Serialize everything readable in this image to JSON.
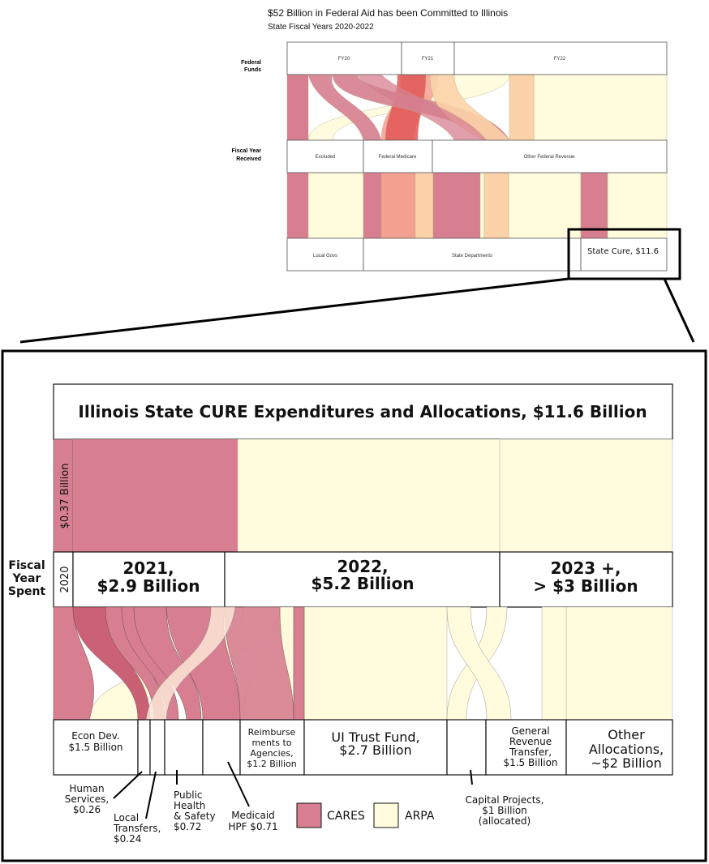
{
  "overview": {
    "title": "$52 Billion in Federal Aid has been Committed to Illinois",
    "subtitle": "State Fiscal Years 2020-2022",
    "row_labels": {
      "federal_funds": [
        "Federal",
        "Funds"
      ],
      "fiscal_year_received": [
        "Fiscal Year",
        "Received"
      ]
    },
    "top_nodes": [
      "FY20",
      "FY21",
      "FY22"
    ],
    "middle_nodes": [
      "Excluded",
      "Federal Medicare",
      "Other Federal Revenue"
    ],
    "bottom_nodes": [
      "Local Govs",
      "State Departments",
      "State Cure, $11.6"
    ]
  },
  "detail": {
    "title": "Illinois State CURE Expenditures and Allocations, $11.6 Billion",
    "row_label": [
      "Fiscal",
      "Year",
      "Spent"
    ],
    "rotated_labels": {
      "carryover": "$0.37 Billion",
      "fy2020": "2020"
    },
    "years": [
      {
        "line1": "2021,",
        "line2": "$2.9 Billion"
      },
      {
        "line1": "2022,",
        "line2": "$5.2 Billion"
      },
      {
        "line1": "2023 +,",
        "line2": "> $3 Billion"
      }
    ],
    "categories": {
      "econ_dev": [
        "Econ Dev.",
        "$1.5 Billion"
      ],
      "reimbursements": [
        "Reimburse",
        "ments to",
        "Agencies,",
        "$1.2 Billion"
      ],
      "ui_trust": [
        "UI Trust Fund,",
        "$2.7 Billion"
      ],
      "general_revenue": [
        "General",
        "Revenue",
        "Transfer,",
        "$1.5 Billion"
      ],
      "other": [
        "Other",
        "Allocations,",
        "~$2 Billion"
      ]
    },
    "callouts": {
      "human_services": [
        "Human",
        "Services,",
        "$0.26"
      ],
      "local_transfers": [
        "Local",
        "Transfers,",
        "$0.24"
      ],
      "public_health": [
        "Public",
        "Health",
        "& Safety",
        "$0.72"
      ],
      "medicaid": [
        "Medicaid",
        "HPF $0.71"
      ],
      "capital": [
        "Capital Projects,",
        "$1 Billion",
        "(allocated)"
      ]
    },
    "legend": [
      {
        "label": "CARES",
        "color": "#d77f90"
      },
      {
        "label": "ARPA",
        "color": "#fffbdc"
      }
    ]
  },
  "colors": {
    "cares": "#d77f90",
    "arpa": "#fffbdc",
    "federal_medicare": "#f4a091",
    "peach": "#fcd3a8",
    "red": "#e35656"
  }
}
